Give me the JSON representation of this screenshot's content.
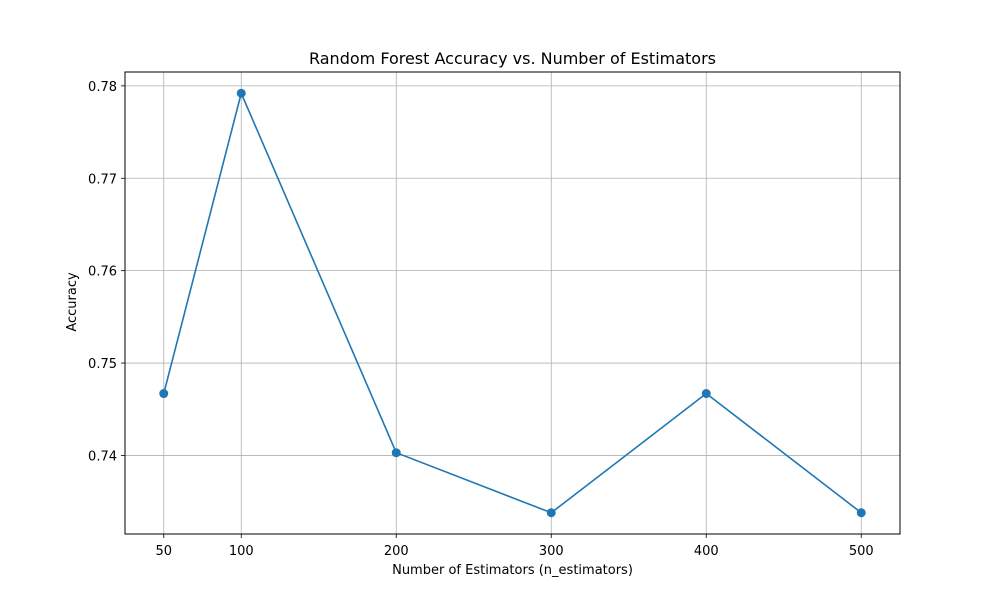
{
  "chart_data": {
    "type": "line",
    "title": "Random Forest Accuracy vs. Number of Estimators",
    "xlabel": "Number of Estimators (n_estimators)",
    "ylabel": "Accuracy",
    "x": [
      50,
      100,
      200,
      300,
      400,
      500
    ],
    "y": [
      0.7467,
      0.7792,
      0.7403,
      0.7338,
      0.7467,
      0.7338
    ],
    "x_ticks": [
      50,
      100,
      200,
      300,
      400,
      500
    ],
    "x_tick_labels": [
      "50",
      "100",
      "200",
      "300",
      "400",
      "500"
    ],
    "y_ticks": [
      0.74,
      0.75,
      0.76,
      0.77,
      0.78
    ],
    "y_tick_labels": [
      "0.74",
      "0.75",
      "0.76",
      "0.77",
      "0.78"
    ],
    "xlim": [
      25,
      525
    ],
    "ylim": [
      0.7315,
      0.7815
    ],
    "grid": true,
    "marker": "circle",
    "line_color": "#1f77b4",
    "grid_color": "#b0b0b0"
  }
}
